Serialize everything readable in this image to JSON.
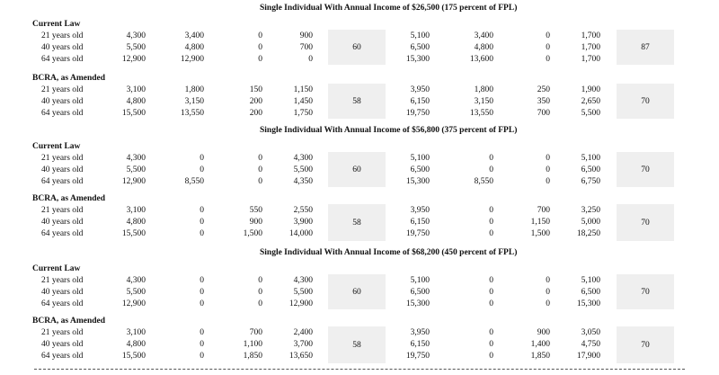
{
  "headings": [
    "Single Individual With Annual Income of $26,500 (175 percent of FPL)",
    "Single Individual With Annual Income of $56,800 (375 percent of FPL)",
    "Single Individual With Annual Income of $68,200 (450 percent of FPL)"
  ],
  "groups": [
    {
      "label": "Current Law",
      "mid": "60",
      "end": "87",
      "rows": [
        {
          "age": "21 years old",
          "c1": "4,300",
          "c2": "3,400",
          "c3": "0",
          "c4": "900",
          "c6": "5,100",
          "c7": "3,400",
          "c8": "0",
          "c9": "1,700"
        },
        {
          "age": "40 years old",
          "c1": "5,500",
          "c2": "4,800",
          "c3": "0",
          "c4": "700",
          "c6": "6,500",
          "c7": "4,800",
          "c8": "0",
          "c9": "1,700"
        },
        {
          "age": "64 years old",
          "c1": "12,900",
          "c2": "12,900",
          "c3": "0",
          "c4": "0",
          "c6": "15,300",
          "c7": "13,600",
          "c8": "0",
          "c9": "1,700"
        }
      ]
    },
    {
      "label": "BCRA, as Amended",
      "mid": "58",
      "end": "70",
      "rows": [
        {
          "age": "21 years old",
          "c1": "3,100",
          "c2": "1,800",
          "c3": "150",
          "c4": "1,150",
          "c6": "3,950",
          "c7": "1,800",
          "c8": "250",
          "c9": "1,900"
        },
        {
          "age": "40 years old",
          "c1": "4,800",
          "c2": "3,150",
          "c3": "200",
          "c4": "1,450",
          "c6": "6,150",
          "c7": "3,150",
          "c8": "350",
          "c9": "2,650"
        },
        {
          "age": "64 years old",
          "c1": "15,500",
          "c2": "13,550",
          "c3": "200",
          "c4": "1,750",
          "c6": "19,750",
          "c7": "13,550",
          "c8": "700",
          "c9": "5,500"
        }
      ]
    },
    {
      "label": "Current Law",
      "mid": "60",
      "end": "70",
      "rows": [
        {
          "age": "21 years old",
          "c1": "4,300",
          "c2": "0",
          "c3": "0",
          "c4": "4,300",
          "c6": "5,100",
          "c7": "0",
          "c8": "0",
          "c9": "5,100"
        },
        {
          "age": "40 years old",
          "c1": "5,500",
          "c2": "0",
          "c3": "0",
          "c4": "5,500",
          "c6": "6,500",
          "c7": "0",
          "c8": "0",
          "c9": "6,500"
        },
        {
          "age": "64 years old",
          "c1": "12,900",
          "c2": "8,550",
          "c3": "0",
          "c4": "4,350",
          "c6": "15,300",
          "c7": "8,550",
          "c8": "0",
          "c9": "6,750"
        }
      ]
    },
    {
      "label": "BCRA, as Amended",
      "mid": "58",
      "end": "70",
      "rows": [
        {
          "age": "21 years old",
          "c1": "3,100",
          "c2": "0",
          "c3": "550",
          "c4": "2,550",
          "c6": "3,950",
          "c7": "0",
          "c8": "700",
          "c9": "3,250"
        },
        {
          "age": "40 years old",
          "c1": "4,800",
          "c2": "0",
          "c3": "900",
          "c4": "3,900",
          "c6": "6,150",
          "c7": "0",
          "c8": "1,150",
          "c9": "5,000"
        },
        {
          "age": "64 years old",
          "c1": "15,500",
          "c2": "0",
          "c3": "1,500",
          "c4": "14,000",
          "c6": "19,750",
          "c7": "0",
          "c8": "1,500",
          "c9": "18,250"
        }
      ]
    },
    {
      "label": "Current Law",
      "mid": "60",
      "end": "70",
      "rows": [
        {
          "age": "21 years old",
          "c1": "4,300",
          "c2": "0",
          "c3": "0",
          "c4": "4,300",
          "c6": "5,100",
          "c7": "0",
          "c8": "0",
          "c9": "5,100"
        },
        {
          "age": "40 years old",
          "c1": "5,500",
          "c2": "0",
          "c3": "0",
          "c4": "5,500",
          "c6": "6,500",
          "c7": "0",
          "c8": "0",
          "c9": "6,500"
        },
        {
          "age": "64 years old",
          "c1": "12,900",
          "c2": "0",
          "c3": "0",
          "c4": "12,900",
          "c6": "15,300",
          "c7": "0",
          "c8": "0",
          "c9": "15,300"
        }
      ]
    },
    {
      "label": "BCRA, as Amended",
      "mid": "58",
      "end": "70",
      "rows": [
        {
          "age": "21 years old",
          "c1": "3,100",
          "c2": "0",
          "c3": "700",
          "c4": "2,400",
          "c6": "3,950",
          "c7": "0",
          "c8": "900",
          "c9": "3,050"
        },
        {
          "age": "40 years old",
          "c1": "4,800",
          "c2": "0",
          "c3": "1,100",
          "c4": "3,700",
          "c6": "6,150",
          "c7": "0",
          "c8": "1,400",
          "c9": "4,750"
        },
        {
          "age": "64 years old",
          "c1": "15,500",
          "c2": "0",
          "c3": "1,850",
          "c4": "13,650",
          "c6": "19,750",
          "c7": "0",
          "c8": "1,850",
          "c9": "17,900"
        }
      ]
    }
  ]
}
